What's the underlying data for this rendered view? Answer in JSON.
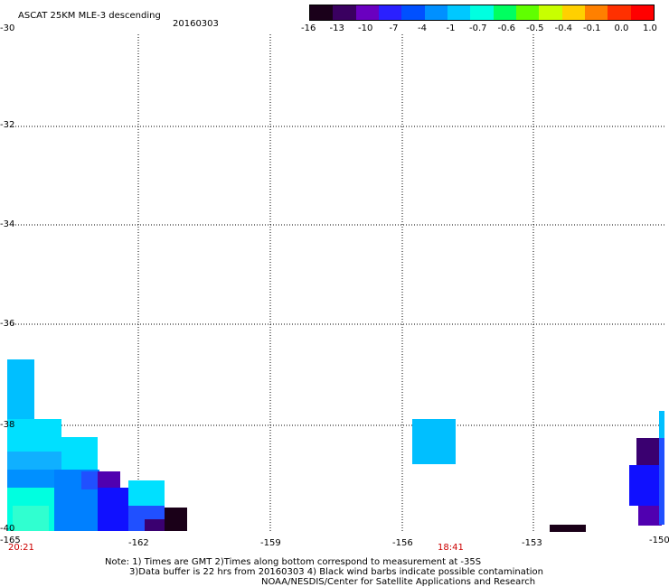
{
  "header": {
    "title": "ASCAT 25KM MLE-3 descending",
    "date": "20160303"
  },
  "colorbar": {
    "labels": [
      "-16",
      "-13",
      "-10",
      "-7",
      "-4",
      "-1",
      "-0.7",
      "-0.6",
      "-0.5",
      "-0.4",
      "-0.1",
      "0.0",
      "1.0"
    ],
    "colors": [
      "#1a001a",
      "#3a0060",
      "#6a00c0",
      "#2a20ff",
      "#0050ff",
      "#0090ff",
      "#00c8ff",
      "#00ffe0",
      "#00ff60",
      "#60ff00",
      "#c8ff00",
      "#ffd000",
      "#ff8000",
      "#ff3000",
      "#ff0000"
    ]
  },
  "axes": {
    "y_labels": [
      "-30",
      "-32",
      "-34",
      "-36",
      "-38",
      "-40"
    ],
    "x_labels": [
      "-165",
      "-162",
      "-159",
      "-156",
      "-153",
      "-150"
    ]
  },
  "time_labels": [
    "20:21",
    "18:41"
  ],
  "notes": [
    "Note: 1) Times are GMT 2)Times along bottom correspond to measurement at -35S",
    "3)Data buffer is 22 hrs from 20160303 4) Black wind barbs indicate possible contamination",
    "NOAA/NESDIS/Center for Satellite Applications and Research"
  ],
  "palette": {
    "light_blue": "#00bfff",
    "cyan": "#00e0ff",
    "aqua": "#00ffe0",
    "blue": "#2050ff",
    "mid_blue": "#0080ff",
    "deep_blue": "#1010ff",
    "purple": "#5000b0",
    "dark_purple": "#3a0070",
    "black_purple": "#1a0018"
  }
}
